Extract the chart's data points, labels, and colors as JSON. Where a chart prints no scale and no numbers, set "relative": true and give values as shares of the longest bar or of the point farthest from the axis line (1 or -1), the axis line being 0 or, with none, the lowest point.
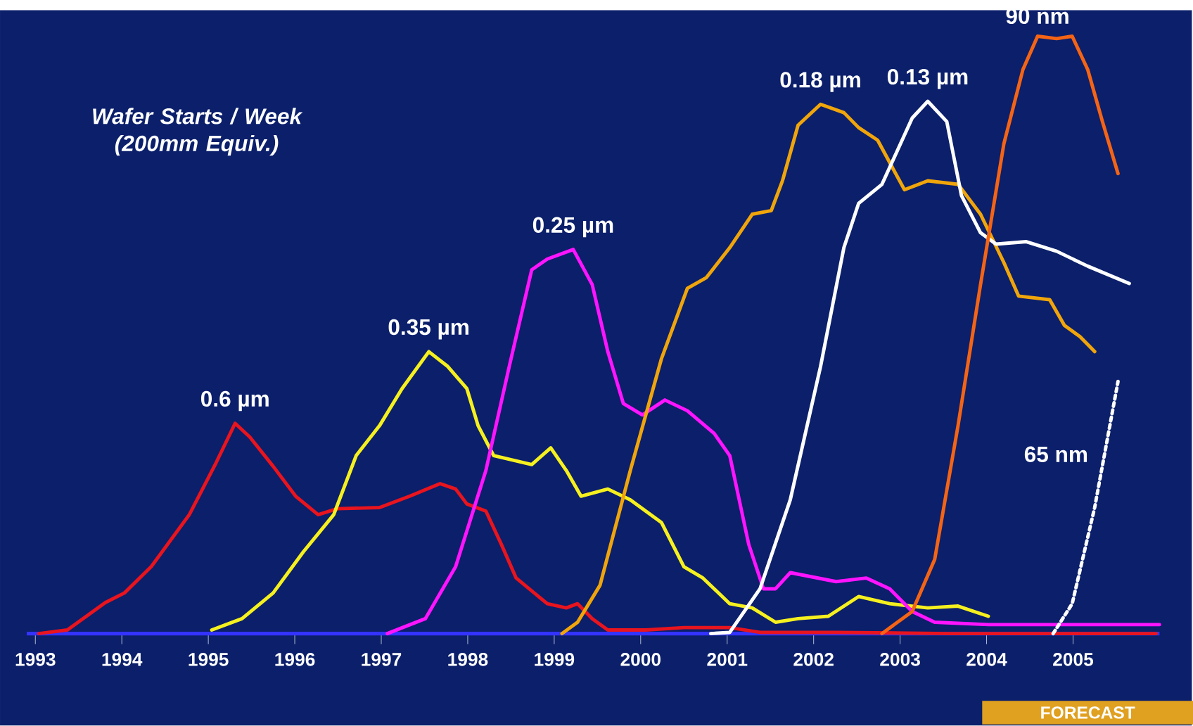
{
  "chart_data": {
    "type": "line",
    "relative": true,
    "ylabel": "Wafer Starts / Week (200mm Equiv.)",
    "annotations": [
      "FORECAST"
    ],
    "xlim": [
      1992.9,
      2006
    ],
    "xticks": [
      1993,
      1994,
      1995,
      1996,
      1997,
      1998,
      1999,
      2000,
      2001,
      2002,
      2003,
      2004,
      2005
    ],
    "grid": false,
    "marker": "none",
    "line_style": "solid",
    "series": [
      {
        "name": "0.6 µm",
        "color": "#e8141e",
        "x": [
          1993.04,
          1993.37,
          1993.81,
          1994.03,
          1994.34,
          1994.78,
          1995.09,
          1995.31,
          1995.48,
          1995.75,
          1996.01,
          1996.27,
          1996.49,
          1996.98,
          1997.33,
          1997.68,
          1997.86,
          1997.99,
          1998.21,
          1998.39,
          1998.56,
          1998.92,
          1999.14,
          1999.27,
          1999.44,
          1999.62,
          2000.06,
          2000.5,
          2001.03,
          2001.38,
          2002.26,
          2003.58,
          2005.96
        ],
        "values": [
          0,
          0.006,
          0.052,
          0.068,
          0.112,
          0.199,
          0.286,
          0.352,
          0.329,
          0.28,
          0.23,
          0.199,
          0.209,
          0.211,
          0.23,
          0.251,
          0.242,
          0.217,
          0.205,
          0.149,
          0.093,
          0.05,
          0.043,
          0.05,
          0.025,
          0.006,
          0.006,
          0.01,
          0.01,
          0.002,
          0.002,
          0,
          0
        ]
      },
      {
        "name": "0.35 µm",
        "color": "#f5f01e",
        "x": [
          1995.04,
          1995.39,
          1995.75,
          1996.1,
          1996.45,
          1996.71,
          1996.98,
          1997.24,
          1997.55,
          1997.77,
          1997.99,
          1998.12,
          1998.3,
          1998.74,
          1998.96,
          1999.14,
          1999.31,
          1999.62,
          1999.88,
          2000.24,
          2000.5,
          2000.72,
          2001.03,
          2001.29,
          2001.56,
          2001.82,
          2002.17,
          2002.52,
          2002.88,
          2003.32,
          2003.67,
          2004.02
        ],
        "values": [
          0.006,
          0.025,
          0.068,
          0.137,
          0.199,
          0.298,
          0.348,
          0.41,
          0.472,
          0.447,
          0.41,
          0.348,
          0.298,
          0.283,
          0.311,
          0.273,
          0.23,
          0.242,
          0.224,
          0.186,
          0.112,
          0.093,
          0.05,
          0.043,
          0.019,
          0.025,
          0.029,
          0.062,
          0.05,
          0.043,
          0.046,
          0.029
        ]
      },
      {
        "name": "0.25 µm",
        "color": "#ff14ff",
        "x": [
          1997.07,
          1997.51,
          1997.86,
          1998.21,
          1998.48,
          1998.74,
          1998.92,
          1999.22,
          1999.44,
          1999.62,
          1999.8,
          2000.02,
          2000.28,
          2000.54,
          2000.85,
          2001.03,
          2001.25,
          2001.42,
          2001.56,
          2001.73,
          2002.26,
          2002.61,
          2002.88,
          2003.14,
          2003.4,
          2004.02,
          2006.0
        ],
        "values": [
          0,
          0.025,
          0.112,
          0.273,
          0.447,
          0.609,
          0.627,
          0.643,
          0.584,
          0.472,
          0.385,
          0.366,
          0.391,
          0.373,
          0.335,
          0.298,
          0.149,
          0.075,
          0.075,
          0.102,
          0.087,
          0.093,
          0.075,
          0.037,
          0.019,
          0.015,
          0.015
        ]
      },
      {
        "name": "0.18 µm",
        "color": "#f0a50a",
        "x": [
          1999.09,
          1999.27,
          1999.53,
          1999.88,
          2000.24,
          2000.54,
          2000.76,
          2001.03,
          2001.29,
          2001.51,
          2001.64,
          2001.82,
          2002.08,
          2002.35,
          2002.52,
          2002.74,
          2003.05,
          2003.32,
          2003.67,
          2003.93,
          2004.2,
          2004.37,
          2004.73,
          2004.9,
          2005.08,
          2005.25
        ],
        "values": [
          0,
          0.019,
          0.081,
          0.273,
          0.46,
          0.578,
          0.596,
          0.646,
          0.702,
          0.708,
          0.758,
          0.851,
          0.886,
          0.872,
          0.847,
          0.826,
          0.743,
          0.758,
          0.752,
          0.702,
          0.621,
          0.565,
          0.559,
          0.516,
          0.497,
          0.472
        ]
      },
      {
        "name": "0.13 µm",
        "color": "#ffffff",
        "x": [
          2000.81,
          2001.03,
          2001.38,
          2001.73,
          2002.08,
          2002.35,
          2002.52,
          2002.79,
          2003.14,
          2003.32,
          2003.54,
          2003.71,
          2003.93,
          2004.11,
          2004.46,
          2004.81,
          2005.17,
          2005.65
        ],
        "values": [
          0,
          0.002,
          0.075,
          0.224,
          0.447,
          0.646,
          0.72,
          0.752,
          0.863,
          0.891,
          0.857,
          0.733,
          0.671,
          0.652,
          0.656,
          0.64,
          0.615,
          0.586
        ]
      },
      {
        "name": "90 nm",
        "color": "#f56414",
        "x": [
          2002.79,
          2003.14,
          2003.4,
          2003.67,
          2003.93,
          2004.2,
          2004.42,
          2004.59,
          2004.81,
          2004.99,
          2005.17,
          2005.34,
          2005.52
        ],
        "values": [
          0,
          0.037,
          0.124,
          0.348,
          0.584,
          0.82,
          0.944,
          1.0,
          0.996,
          1.0,
          0.944,
          0.857,
          0.77
        ]
      },
      {
        "name": "65 nm",
        "color": "#ffffff",
        "line_style": "dotted",
        "x": [
          2004.77,
          2004.99,
          2005.25,
          2005.52
        ],
        "values": [
          0,
          0.05,
          0.211,
          0.422
        ]
      }
    ]
  }
}
